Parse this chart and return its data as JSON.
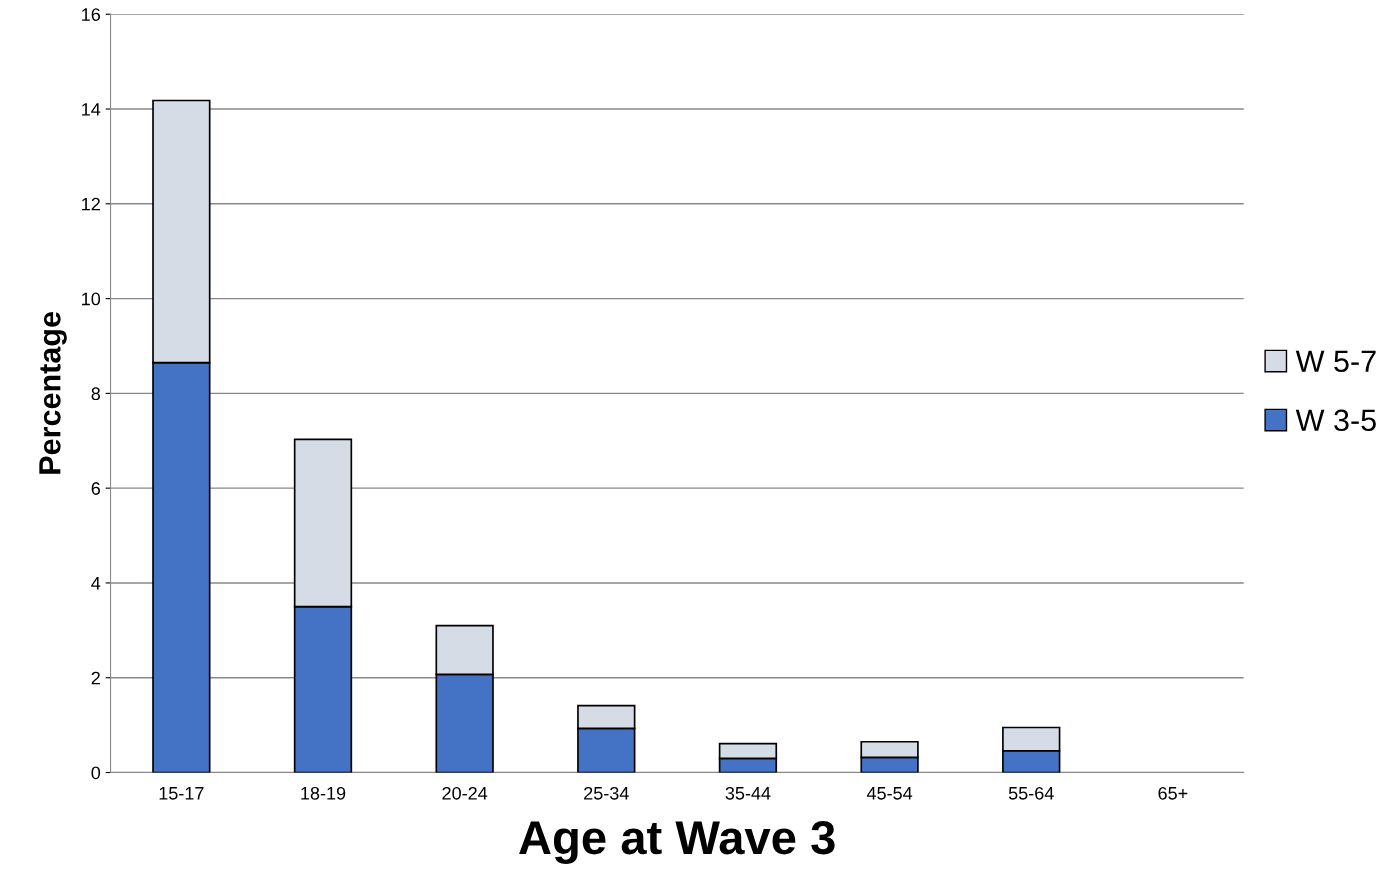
{
  "chart_data": {
    "type": "bar",
    "stacked": true,
    "xlabel": "Age at Wave 3",
    "ylabel": "Percentage",
    "categories": [
      "15-17",
      "18-19",
      "20-24",
      "25-34",
      "35-44",
      "45-54",
      "55-64",
      "65+"
    ],
    "series": [
      {
        "name": "W 3-5",
        "color": "#4472c4",
        "values": [
          8.65,
          3.5,
          2.07,
          0.93,
          0.3,
          0.32,
          0.46,
          0
        ]
      },
      {
        "name": "W 5-7",
        "color": "#d6dce5",
        "values": [
          5.53,
          3.53,
          1.03,
          0.48,
          0.31,
          0.33,
          0.49,
          0
        ]
      }
    ],
    "ylim": [
      0,
      16
    ],
    "yticks": [
      0,
      2,
      4,
      6,
      8,
      10,
      12,
      14,
      16
    ],
    "grid": "y",
    "legend": "right"
  }
}
